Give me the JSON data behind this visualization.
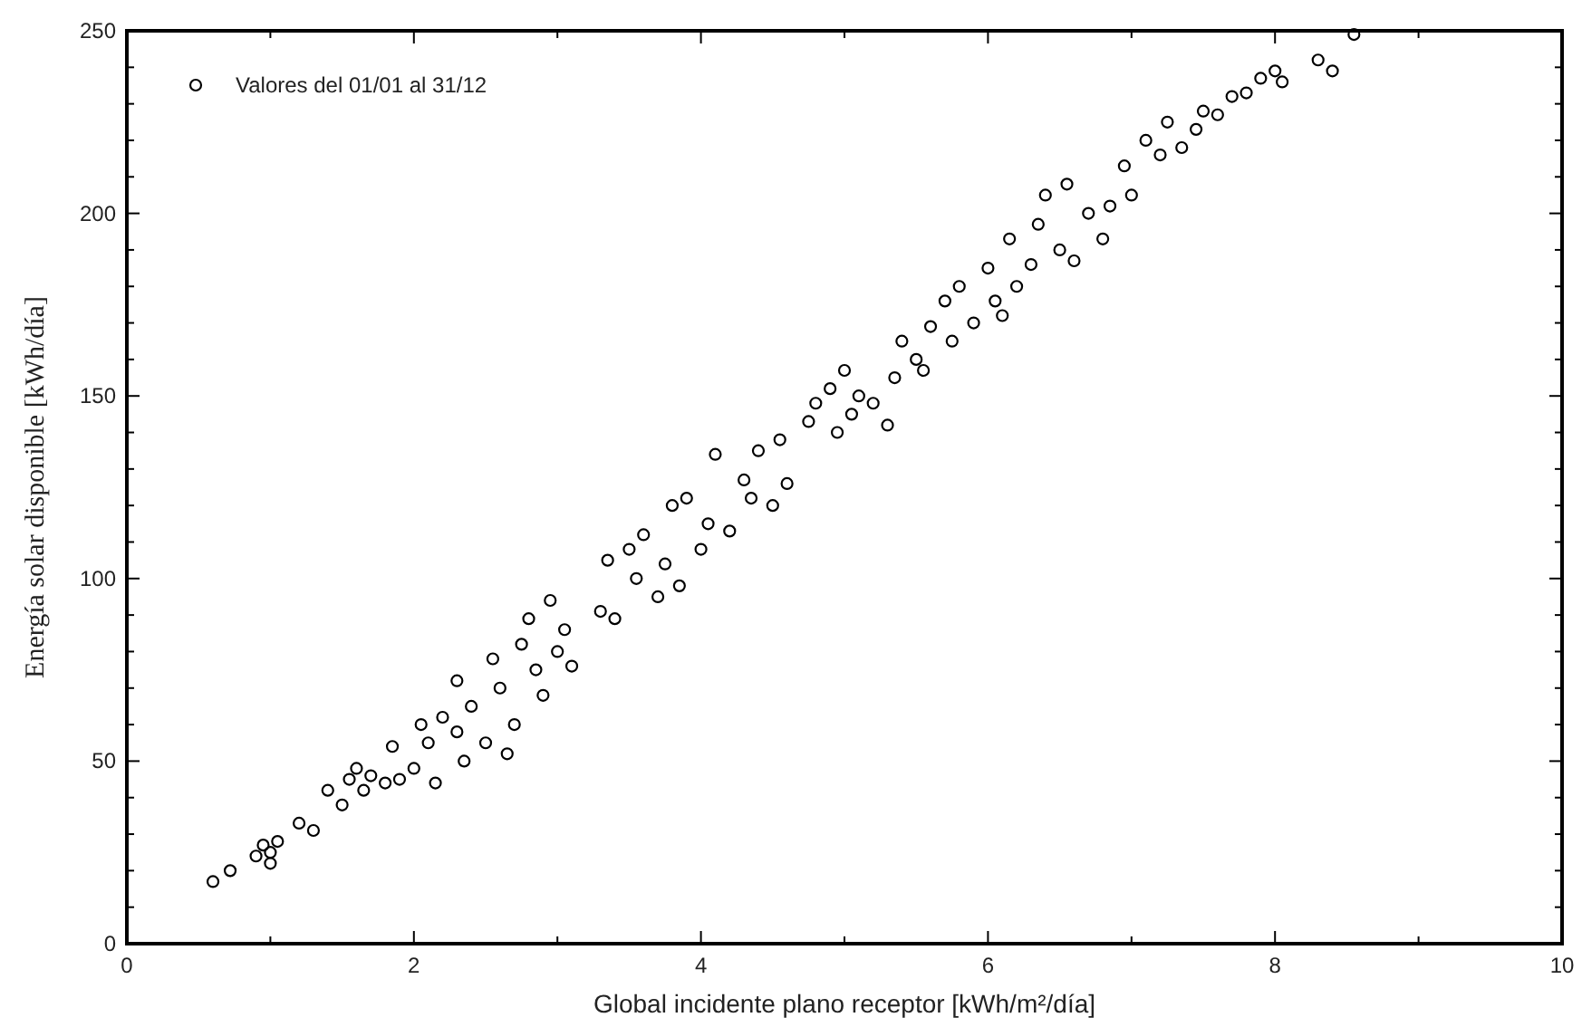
{
  "chart_data": {
    "type": "scatter",
    "xlabel": "Global incidente plano receptor [kWh/m²/día]",
    "ylabel": "Energía solar disponible [kWh/día]",
    "legend": "top left",
    "marker": "circle",
    "grid": false,
    "xlim": [
      0,
      10
    ],
    "ylim": [
      0,
      250
    ],
    "xticks": [
      0,
      {
        "value": 1,
        "label": null
      },
      2,
      {
        "value": 3,
        "label": null
      },
      4,
      {
        "value": 5,
        "label": null
      },
      6,
      {
        "value": 7,
        "label": null
      },
      8,
      {
        "value": 9,
        "label": null
      },
      10
    ],
    "yticks": [
      0,
      {
        "value": 10,
        "label": null
      },
      {
        "value": 20,
        "label": null
      },
      {
        "value": 30,
        "label": null
      },
      {
        "value": 40,
        "label": null
      },
      50,
      {
        "value": 60,
        "label": null
      },
      {
        "value": 70,
        "label": null
      },
      {
        "value": 80,
        "label": null
      },
      {
        "value": 90,
        "label": null
      },
      100,
      {
        "value": 110,
        "label": null
      },
      {
        "value": 120,
        "label": null
      },
      {
        "value": 130,
        "label": null
      },
      {
        "value": 140,
        "label": null
      },
      150,
      {
        "value": 160,
        "label": null
      },
      {
        "value": 170,
        "label": null
      },
      {
        "value": 180,
        "label": null
      },
      {
        "value": 190,
        "label": null
      },
      200,
      {
        "value": 210,
        "label": null
      },
      {
        "value": 220,
        "label": null
      },
      {
        "value": 230,
        "label": null
      },
      {
        "value": 240,
        "label": null
      },
      250
    ],
    "series": [
      {
        "name": "Valores del 01/01 al 31/12",
        "color": "#000000",
        "x": [
          0.6,
          0.72,
          0.9,
          0.95,
          1.0,
          1.05,
          1.0,
          1.2,
          1.3,
          1.4,
          1.5,
          1.55,
          1.6,
          1.65,
          1.7,
          1.8,
          1.85,
          1.9,
          2.0,
          2.05,
          2.1,
          2.15,
          2.2,
          2.3,
          2.3,
          2.35,
          2.4,
          2.5,
          2.55,
          2.6,
          2.65,
          2.7,
          2.75,
          2.8,
          2.85,
          2.9,
          2.95,
          3.0,
          3.05,
          3.1,
          3.3,
          3.35,
          3.4,
          3.5,
          3.55,
          3.6,
          3.7,
          3.75,
          3.8,
          3.85,
          3.9,
          4.0,
          4.05,
          4.1,
          4.2,
          4.3,
          4.35,
          4.4,
          4.5,
          4.55,
          4.6,
          4.75,
          4.8,
          4.9,
          4.95,
          5.0,
          5.05,
          5.1,
          5.2,
          5.3,
          5.35,
          5.4,
          5.5,
          5.55,
          5.6,
          5.7,
          5.75,
          5.8,
          5.9,
          6.0,
          6.05,
          6.1,
          6.15,
          6.2,
          6.3,
          6.35,
          6.4,
          6.5,
          6.55,
          6.6,
          6.7,
          6.8,
          6.85,
          6.95,
          7.0,
          7.1,
          7.2,
          7.25,
          7.35,
          7.45,
          7.5,
          7.6,
          7.7,
          7.8,
          7.9,
          8.0,
          8.05,
          8.3,
          8.4,
          8.55
        ],
        "values": [
          17,
          20,
          24,
          27,
          22,
          28,
          25,
          33,
          31,
          42,
          38,
          45,
          48,
          42,
          46,
          44,
          54,
          45,
          48,
          60,
          55,
          44,
          62,
          72,
          58,
          50,
          65,
          55,
          78,
          70,
          52,
          60,
          82,
          89,
          75,
          68,
          94,
          80,
          86,
          76,
          91,
          105,
          89,
          108,
          100,
          112,
          95,
          104,
          120,
          98,
          122,
          108,
          115,
          134,
          113,
          127,
          122,
          135,
          120,
          138,
          126,
          143,
          148,
          152,
          140,
          157,
          145,
          150,
          148,
          142,
          155,
          165,
          160,
          157,
          169,
          176,
          165,
          180,
          170,
          185,
          176,
          172,
          193,
          180,
          186,
          197,
          205,
          190,
          208,
          187,
          200,
          193,
          202,
          213,
          205,
          220,
          216,
          225,
          218,
          223,
          228,
          227,
          232,
          233,
          237,
          239,
          236,
          242,
          239,
          249
        ]
      }
    ]
  }
}
